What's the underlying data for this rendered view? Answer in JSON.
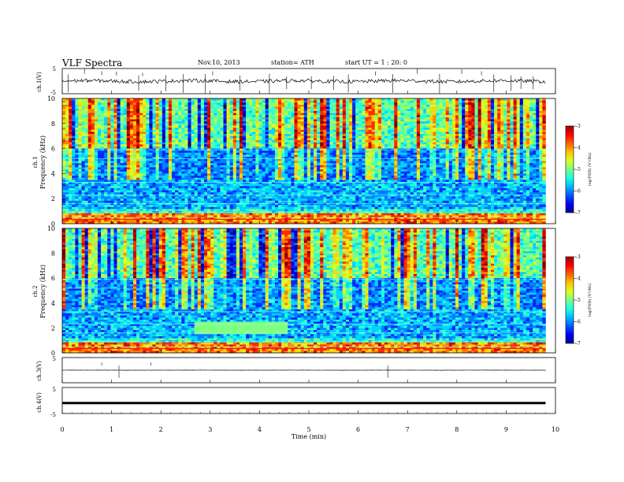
{
  "header": {
    "title": "VLF  Spectra",
    "date": "Nov.10, 2013",
    "station": "station= ATH",
    "start": "start  UT  =   1 : 20: 0"
  },
  "chart_data": [
    {
      "type": "line",
      "panel": "ch1",
      "ylabel": "ch.1(V)",
      "ylim": [
        -5,
        5
      ],
      "yticks": [
        "5",
        "-5"
      ],
      "baseline": 0,
      "noise": 0.7,
      "spikes": [
        0.12,
        0.45,
        0.8,
        1.1,
        1.55,
        1.63,
        2.1,
        2.45,
        2.9,
        3.05,
        3.6,
        4.2,
        4.55,
        5.05,
        5.5,
        5.8,
        6.35,
        6.7,
        7.2,
        7.65,
        8.1,
        8.5,
        8.75,
        9.1,
        9.3,
        9.55
      ]
    },
    {
      "type": "heatmap",
      "panel": "ch1",
      "ylabel": "Frequency  (kHz)",
      "ylabel2": "ch.1",
      "ylim": [
        0,
        10
      ],
      "yticks": [
        "0",
        "2",
        "4",
        "6",
        "8",
        "10"
      ],
      "colorbar": {
        "label": "log(PSD) (V²/Hz)",
        "ticks": [
          "-3",
          "-4",
          "-5",
          "-6",
          "-7"
        ],
        "range": [
          -7,
          -3
        ]
      }
    },
    {
      "type": "heatmap",
      "panel": "ch2",
      "ylabel": "Frequency  (kHz)",
      "ylabel2": "ch.2",
      "ylim": [
        0,
        10
      ],
      "yticks": [
        "0",
        "2",
        "4",
        "6",
        "8",
        "10"
      ],
      "colorbar": {
        "label": "log(PSD) (V²/Hz)",
        "ticks": [
          "-3",
          "-4",
          "-5",
          "-6",
          "-7"
        ],
        "range": [
          -7,
          -3
        ]
      }
    },
    {
      "type": "line",
      "panel": "ch3",
      "ylabel": "ch.3(V)",
      "ylim": [
        -5,
        5
      ],
      "yticks": [
        "5"
      ],
      "baseline": 0,
      "noise": 0.03,
      "spikes": [
        0.8,
        1.15,
        1.8,
        6.6
      ]
    },
    {
      "type": "line",
      "panel": "ch4",
      "ylabel": "ch.4(V)",
      "ylim": [
        -5,
        5
      ],
      "yticks": [
        "5",
        "-5"
      ],
      "baseline": -1,
      "noise": 0,
      "spikes": []
    }
  ],
  "xaxis": {
    "label": "Time  (min)",
    "xlim": [
      0,
      10
    ],
    "ticks": [
      "0",
      "1",
      "2",
      "3",
      "4",
      "5",
      "6",
      "7",
      "8",
      "9",
      "10"
    ],
    "data_end": 9.8
  }
}
